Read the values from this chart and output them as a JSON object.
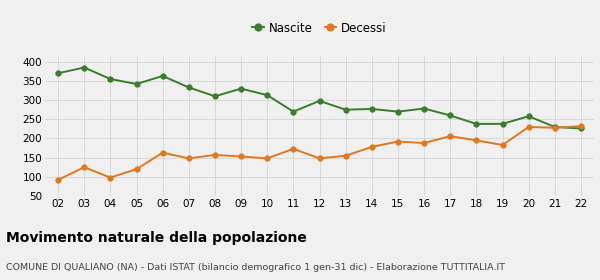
{
  "years": [
    "02",
    "03",
    "04",
    "05",
    "06",
    "07",
    "08",
    "09",
    "10",
    "11",
    "12",
    "13",
    "14",
    "15",
    "16",
    "17",
    "18",
    "19",
    "20",
    "21",
    "22"
  ],
  "nascite": [
    370,
    385,
    355,
    342,
    363,
    333,
    310,
    330,
    313,
    270,
    298,
    275,
    277,
    270,
    278,
    260,
    238,
    238,
    258,
    230,
    226
  ],
  "decessi": [
    92,
    125,
    98,
    120,
    163,
    148,
    157,
    153,
    148,
    173,
    148,
    155,
    178,
    192,
    188,
    206,
    195,
    183,
    230,
    228,
    232
  ],
  "nascite_color": "#3a7d2c",
  "decessi_color": "#e07820",
  "background_color": "#f0f0f0",
  "grid_color": "#d0d0d0",
  "title": "Movimento naturale della popolazione",
  "subtitle": "COMUNE DI QUALIANO (NA) - Dati ISTAT (bilancio demografico 1 gen-31 dic) - Elaborazione TUTTITALIA.IT",
  "legend_nascite": "Nascite",
  "legend_decessi": "Decessi",
  "ylim": [
    50,
    415
  ],
  "yticks": [
    50,
    100,
    150,
    200,
    250,
    300,
    350,
    400
  ],
  "marker_size": 3.5,
  "line_width": 1.4,
  "title_fontsize": 10,
  "subtitle_fontsize": 6.8,
  "tick_fontsize": 7.5,
  "legend_fontsize": 8.5
}
